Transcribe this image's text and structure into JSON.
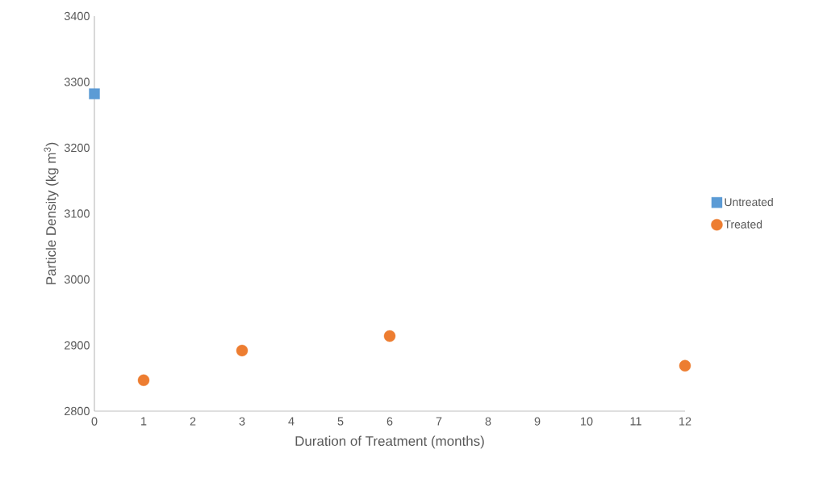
{
  "chart_data": {
    "type": "scatter",
    "xlabel": "Duration of Treatment (months)",
    "ylabel": "Particle Density (kg m$^{3}$)",
    "xlim": [
      0,
      12
    ],
    "xticks": [
      0,
      1,
      2,
      3,
      4,
      5,
      6,
      7,
      8,
      9,
      10,
      11,
      12
    ],
    "ylim": [
      2800,
      3400
    ],
    "yticks": [
      2800,
      2900,
      3000,
      3100,
      3200,
      3300,
      3400
    ],
    "grid": false,
    "legend": "right",
    "series": [
      {
        "name": "Untreated",
        "color": "#5b9bd5",
        "marker": "square",
        "x": [
          0
        ],
        "values": [
          3282
        ]
      },
      {
        "name": "Treated",
        "color": "#ed7d31",
        "marker": "circle",
        "x": [
          1,
          3,
          6,
          12
        ],
        "values": [
          2847,
          2892,
          2914,
          2869
        ]
      }
    ]
  }
}
